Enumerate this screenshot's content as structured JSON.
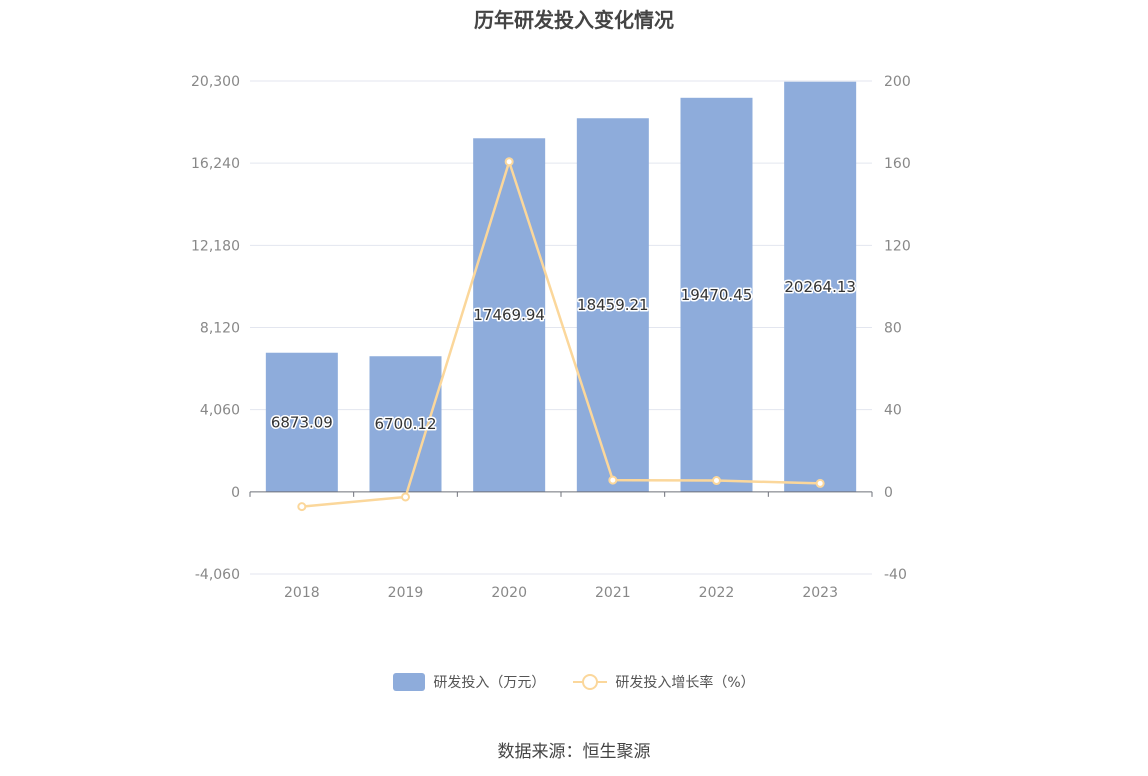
{
  "title": "历年研发投入变化情况",
  "legend": {
    "bar_label": "研发投入（万元）",
    "line_label": "研发投入增长率（%）"
  },
  "source": "数据来源：恒生聚源",
  "colors": {
    "bar": "#8eacdb",
    "line": "#fbd79b",
    "grid": "#e3e6ef",
    "axis_text": "#888888"
  },
  "chart_data": {
    "type": "bar",
    "title": "历年研发投入变化情况",
    "categories": [
      "2018",
      "2019",
      "2020",
      "2021",
      "2022",
      "2023"
    ],
    "series": [
      {
        "name": "研发投入（万元）",
        "type": "bar",
        "axis": "left",
        "values": [
          6873.09,
          6700.12,
          17469.94,
          18459.21,
          19470.45,
          20264.13
        ],
        "labels": [
          "6873.09",
          "6700.12",
          "17469.94",
          "18459.21",
          "19470.45",
          "20264.13"
        ]
      },
      {
        "name": "研发投入增长率（%）",
        "type": "line",
        "axis": "right",
        "values": [
          -7.2,
          -2.5,
          160.7,
          5.7,
          5.5,
          4.1
        ]
      }
    ],
    "y_left": {
      "min": -4060,
      "max": 20300,
      "ticks": [
        -4060,
        0,
        4060,
        8120,
        12180,
        16240,
        20300
      ],
      "tick_labels": [
        "-4,060",
        "0",
        "4,060",
        "8,120",
        "12,180",
        "16,240",
        "20,300"
      ]
    },
    "y_right": {
      "min": -40,
      "max": 200,
      "ticks": [
        -40,
        0,
        40,
        80,
        120,
        160,
        200
      ],
      "tick_labels": [
        "-40",
        "0",
        "40",
        "80",
        "120",
        "160",
        "200"
      ]
    },
    "grid": true,
    "legend_position": "bottom"
  }
}
